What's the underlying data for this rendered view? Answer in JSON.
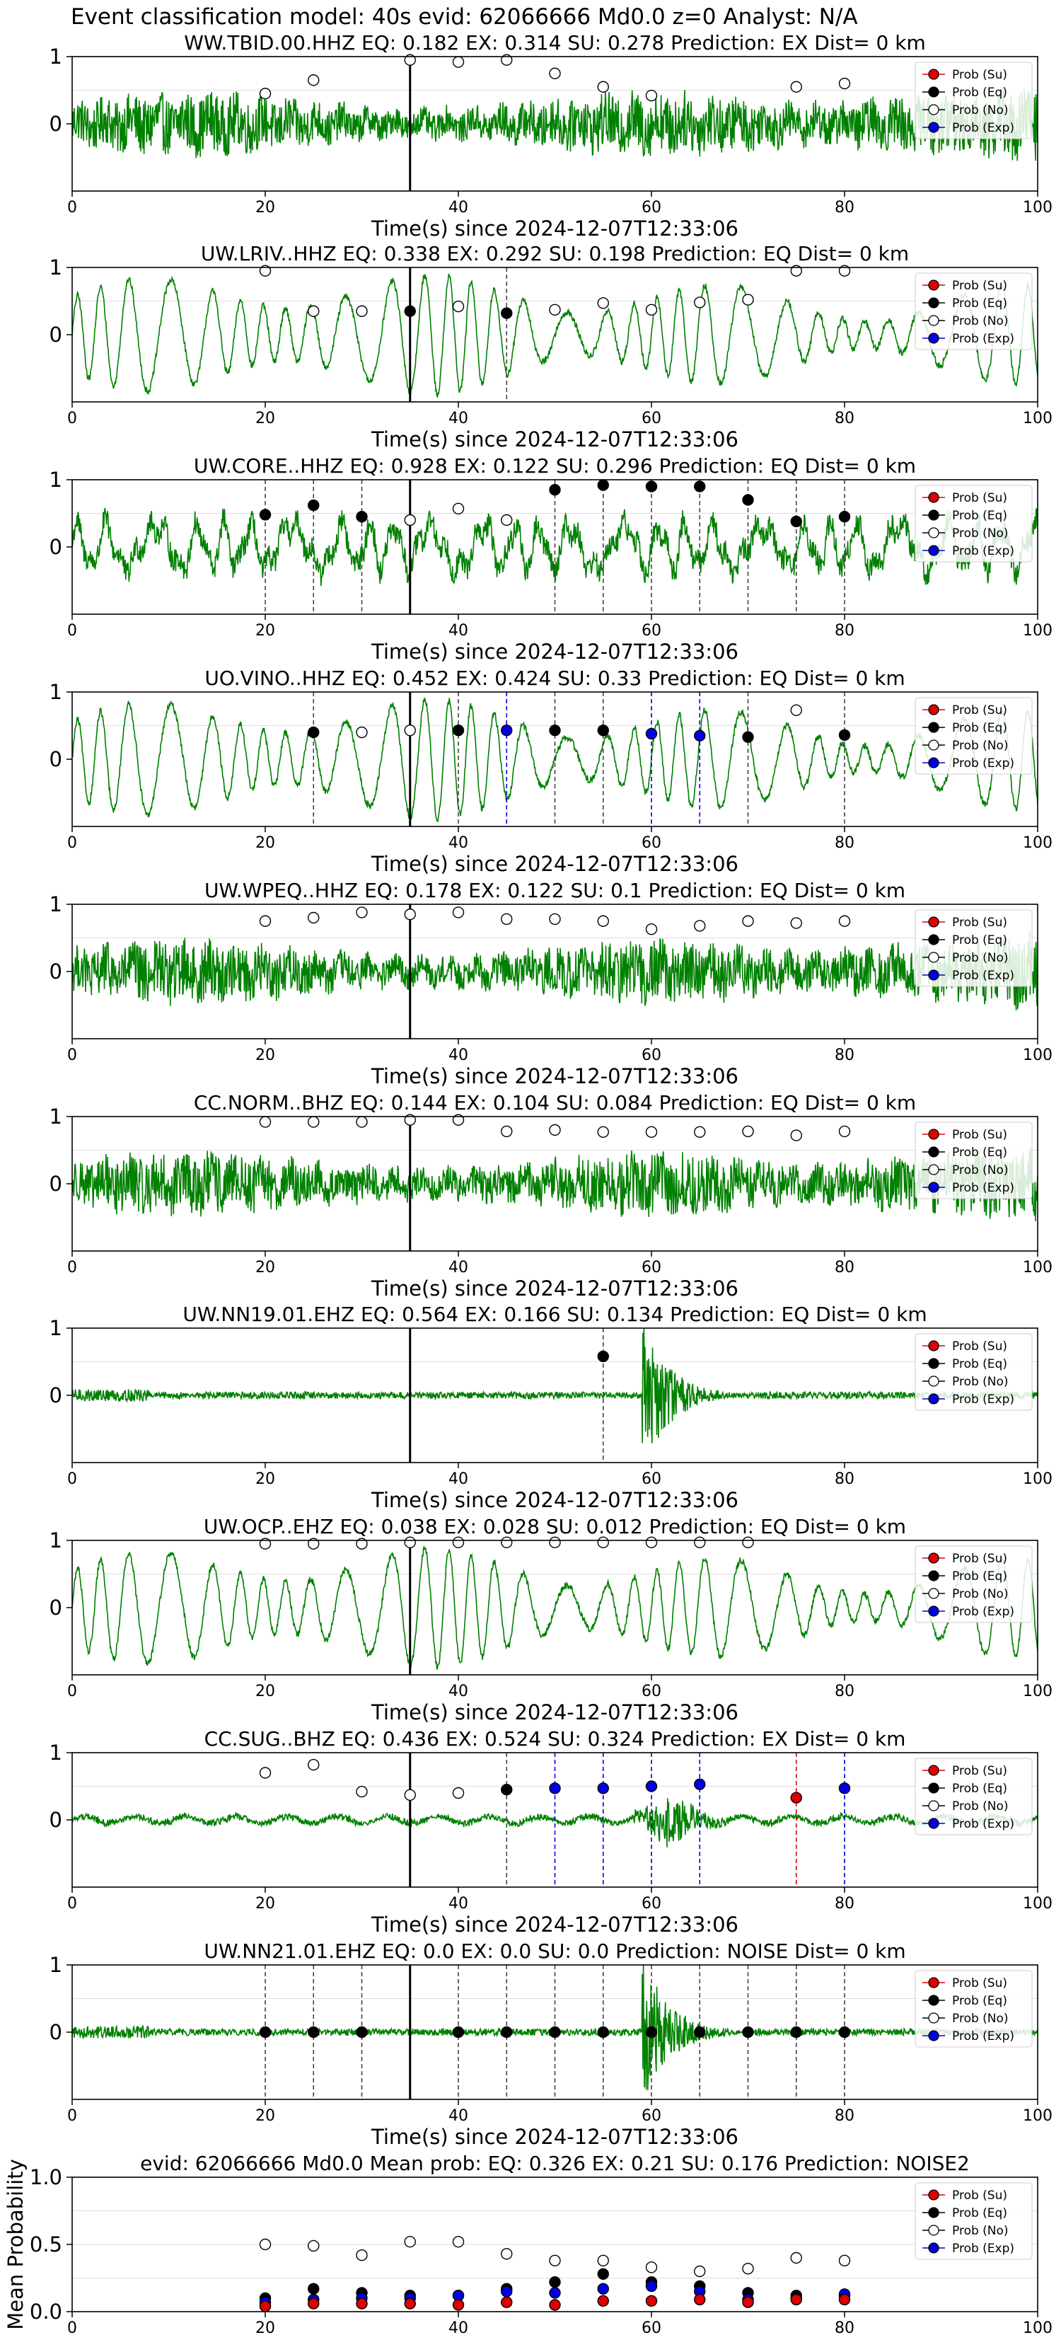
{
  "figure": {
    "suptitle": "Event classification model: 40s evid: 62066666 Md0.0 z=0 Analyst: N/A"
  },
  "legend_labels": [
    "Prob (Su)",
    "Prob (Eq)",
    "Prob (No)",
    "Prob (Exp)"
  ],
  "colors": {
    "waveform": "#008000",
    "su": "#e00000",
    "eq": "#000000",
    "no": "#ffffff",
    "exp": "#0000e0",
    "pick_line": "#000000",
    "grid": "#dddddd"
  },
  "chart_data": [
    {
      "type": "line",
      "title": "WW.TBID.00.HHZ   EQ: 0.182  EX: 0.314  SU: 0.278   Prediction: EX    Dist= 0 km",
      "xlabel": "Time(s) since 2024-12-07T12:33:06",
      "xlim": [
        0,
        100
      ],
      "ylim": [
        -1,
        1
      ],
      "xticks": [
        0,
        20,
        40,
        60,
        80,
        100
      ],
      "yticks": [
        0,
        1
      ],
      "waveform_style": "broadband_noise",
      "pick_time": 35,
      "points": [
        {
          "x": 20,
          "y": 0.45,
          "class": "no"
        },
        {
          "x": 25,
          "y": 0.65,
          "class": "no"
        },
        {
          "x": 35,
          "y": 0.95,
          "class": "no"
        },
        {
          "x": 40,
          "y": 0.92,
          "class": "no"
        },
        {
          "x": 45,
          "y": 0.95,
          "class": "no"
        },
        {
          "x": 50,
          "y": 0.75,
          "class": "no"
        },
        {
          "x": 55,
          "y": 0.55,
          "class": "no"
        },
        {
          "x": 60,
          "y": 0.42,
          "class": "no"
        },
        {
          "x": 75,
          "y": 0.55,
          "class": "no"
        },
        {
          "x": 80,
          "y": 0.6,
          "class": "no"
        }
      ],
      "vlines": []
    },
    {
      "type": "line",
      "title": "UW.LRIV..HHZ   EQ: 0.338  EX: 0.292  SU: 0.198   Prediction: EQ    Dist= 0 km",
      "xlabel": "Time(s) since 2024-12-07T12:33:06",
      "xlim": [
        0,
        100
      ],
      "ylim": [
        -1,
        1
      ],
      "xticks": [
        0,
        20,
        40,
        60,
        80,
        100
      ],
      "yticks": [
        0,
        1
      ],
      "waveform_style": "smooth_oscillation",
      "pick_time": 35,
      "points": [
        {
          "x": 20,
          "y": 0.95,
          "class": "no"
        },
        {
          "x": 25,
          "y": 0.35,
          "class": "no"
        },
        {
          "x": 30,
          "y": 0.35,
          "class": "no"
        },
        {
          "x": 35,
          "y": 0.35,
          "class": "eq"
        },
        {
          "x": 40,
          "y": 0.42,
          "class": "no"
        },
        {
          "x": 45,
          "y": 0.32,
          "class": "eq"
        },
        {
          "x": 50,
          "y": 0.37,
          "class": "no"
        },
        {
          "x": 55,
          "y": 0.47,
          "class": "no"
        },
        {
          "x": 60,
          "y": 0.37,
          "class": "no"
        },
        {
          "x": 65,
          "y": 0.48,
          "class": "no"
        },
        {
          "x": 70,
          "y": 0.52,
          "class": "no"
        },
        {
          "x": 75,
          "y": 0.95,
          "class": "no"
        },
        {
          "x": 80,
          "y": 0.95,
          "class": "no"
        }
      ],
      "vlines": [
        {
          "x": 45,
          "class": "eq"
        }
      ]
    },
    {
      "type": "line",
      "title": "UW.CORE..HHZ   EQ: 0.928  EX: 0.122  SU: 0.296   Prediction: EQ    Dist= 0 km",
      "xlabel": "Time(s) since 2024-12-07T12:33:06",
      "xlim": [
        0,
        100
      ],
      "ylim": [
        -1,
        1
      ],
      "xticks": [
        0,
        20,
        40,
        60,
        80,
        100
      ],
      "yticks": [
        0,
        1
      ],
      "waveform_style": "mixed",
      "pick_time": 35,
      "points": [
        {
          "x": 20,
          "y": 0.48,
          "class": "eq"
        },
        {
          "x": 25,
          "y": 0.62,
          "class": "eq"
        },
        {
          "x": 30,
          "y": 0.45,
          "class": "eq"
        },
        {
          "x": 35,
          "y": 0.4,
          "class": "no"
        },
        {
          "x": 40,
          "y": 0.57,
          "class": "no"
        },
        {
          "x": 45,
          "y": 0.4,
          "class": "no"
        },
        {
          "x": 50,
          "y": 0.85,
          "class": "eq"
        },
        {
          "x": 55,
          "y": 0.92,
          "class": "eq"
        },
        {
          "x": 60,
          "y": 0.9,
          "class": "eq"
        },
        {
          "x": 65,
          "y": 0.9,
          "class": "eq"
        },
        {
          "x": 70,
          "y": 0.7,
          "class": "eq"
        },
        {
          "x": 75,
          "y": 0.38,
          "class": "eq"
        },
        {
          "x": 80,
          "y": 0.45,
          "class": "eq"
        }
      ],
      "vlines": [
        {
          "x": 20,
          "class": "eq"
        },
        {
          "x": 25,
          "class": "eq"
        },
        {
          "x": 30,
          "class": "eq"
        },
        {
          "x": 50,
          "class": "eq"
        },
        {
          "x": 55,
          "class": "eq"
        },
        {
          "x": 60,
          "class": "eq"
        },
        {
          "x": 65,
          "class": "eq"
        },
        {
          "x": 70,
          "class": "eq"
        },
        {
          "x": 75,
          "class": "eq"
        },
        {
          "x": 80,
          "class": "eq"
        }
      ]
    },
    {
      "type": "line",
      "title": "UO.VINO..HHZ   EQ: 0.452  EX: 0.424  SU: 0.33   Prediction: EQ    Dist= 0 km",
      "xlabel": "Time(s) since 2024-12-07T12:33:06",
      "xlim": [
        0,
        100
      ],
      "ylim": [
        -1,
        1
      ],
      "xticks": [
        0,
        20,
        40,
        60,
        80,
        100
      ],
      "yticks": [
        0,
        1
      ],
      "waveform_style": "smooth_oscillation",
      "pick_time": 35,
      "points": [
        {
          "x": 25,
          "y": 0.4,
          "class": "eq"
        },
        {
          "x": 30,
          "y": 0.4,
          "class": "no"
        },
        {
          "x": 35,
          "y": 0.43,
          "class": "no"
        },
        {
          "x": 40,
          "y": 0.43,
          "class": "eq"
        },
        {
          "x": 45,
          "y": 0.43,
          "class": "exp"
        },
        {
          "x": 50,
          "y": 0.43,
          "class": "eq"
        },
        {
          "x": 55,
          "y": 0.43,
          "class": "eq"
        },
        {
          "x": 60,
          "y": 0.38,
          "class": "exp"
        },
        {
          "x": 65,
          "y": 0.35,
          "class": "exp"
        },
        {
          "x": 70,
          "y": 0.33,
          "class": "eq"
        },
        {
          "x": 75,
          "y": 0.73,
          "class": "no"
        },
        {
          "x": 80,
          "y": 0.36,
          "class": "eq"
        }
      ],
      "vlines": [
        {
          "x": 25,
          "class": "eq"
        },
        {
          "x": 40,
          "class": "eq"
        },
        {
          "x": 45,
          "class": "exp"
        },
        {
          "x": 50,
          "class": "eq"
        },
        {
          "x": 55,
          "class": "eq"
        },
        {
          "x": 60,
          "class": "exp"
        },
        {
          "x": 65,
          "class": "exp"
        },
        {
          "x": 70,
          "class": "eq"
        },
        {
          "x": 80,
          "class": "eq"
        }
      ]
    },
    {
      "type": "line",
      "title": "UW.WPEQ..HHZ   EQ: 0.178  EX: 0.122  SU: 0.1   Prediction: EQ    Dist= 0 km",
      "xlabel": "Time(s) since 2024-12-07T12:33:06",
      "xlim": [
        0,
        100
      ],
      "ylim": [
        -1,
        1
      ],
      "xticks": [
        0,
        20,
        40,
        60,
        80,
        100
      ],
      "yticks": [
        0,
        1
      ],
      "waveform_style": "broadband_noise",
      "pick_time": 35,
      "points": [
        {
          "x": 20,
          "y": 0.75,
          "class": "no"
        },
        {
          "x": 25,
          "y": 0.8,
          "class": "no"
        },
        {
          "x": 30,
          "y": 0.88,
          "class": "no"
        },
        {
          "x": 35,
          "y": 0.85,
          "class": "no"
        },
        {
          "x": 40,
          "y": 0.88,
          "class": "no"
        },
        {
          "x": 45,
          "y": 0.78,
          "class": "no"
        },
        {
          "x": 50,
          "y": 0.78,
          "class": "no"
        },
        {
          "x": 55,
          "y": 0.75,
          "class": "no"
        },
        {
          "x": 60,
          "y": 0.63,
          "class": "no"
        },
        {
          "x": 65,
          "y": 0.68,
          "class": "no"
        },
        {
          "x": 70,
          "y": 0.75,
          "class": "no"
        },
        {
          "x": 75,
          "y": 0.72,
          "class": "no"
        },
        {
          "x": 80,
          "y": 0.75,
          "class": "no"
        }
      ],
      "vlines": []
    },
    {
      "type": "line",
      "title": "CC.NORM..BHZ   EQ: 0.144  EX: 0.104  SU: 0.084   Prediction: EQ    Dist= 0 km",
      "xlabel": "Time(s) since 2024-12-07T12:33:06",
      "xlim": [
        0,
        100
      ],
      "ylim": [
        -1,
        1
      ],
      "xticks": [
        0,
        20,
        40,
        60,
        80,
        100
      ],
      "yticks": [
        0,
        1
      ],
      "waveform_style": "broadband_noise",
      "pick_time": 35,
      "points": [
        {
          "x": 20,
          "y": 0.92,
          "class": "no"
        },
        {
          "x": 25,
          "y": 0.92,
          "class": "no"
        },
        {
          "x": 30,
          "y": 0.92,
          "class": "no"
        },
        {
          "x": 35,
          "y": 0.95,
          "class": "no"
        },
        {
          "x": 40,
          "y": 0.95,
          "class": "no"
        },
        {
          "x": 45,
          "y": 0.78,
          "class": "no"
        },
        {
          "x": 50,
          "y": 0.8,
          "class": "no"
        },
        {
          "x": 55,
          "y": 0.77,
          "class": "no"
        },
        {
          "x": 60,
          "y": 0.77,
          "class": "no"
        },
        {
          "x": 65,
          "y": 0.77,
          "class": "no"
        },
        {
          "x": 70,
          "y": 0.78,
          "class": "no"
        },
        {
          "x": 75,
          "y": 0.72,
          "class": "no"
        },
        {
          "x": 80,
          "y": 0.78,
          "class": "no"
        }
      ],
      "vlines": []
    },
    {
      "type": "line",
      "title": "UW.NN19.01.EHZ   EQ: 0.564  EX: 0.166  SU: 0.134   Prediction: EQ    Dist= 0 km",
      "xlabel": "Time(s) since 2024-12-07T12:33:06",
      "xlim": [
        0,
        100
      ],
      "ylim": [
        -1,
        1
      ],
      "xticks": [
        0,
        20,
        40,
        60,
        80,
        100
      ],
      "yticks": [
        0,
        1
      ],
      "waveform_style": "quiet_burst_60",
      "pick_time": 35,
      "points": [
        {
          "x": 55,
          "y": 0.58,
          "class": "eq"
        }
      ],
      "vlines": [
        {
          "x": 55,
          "class": "eq"
        }
      ]
    },
    {
      "type": "line",
      "title": "UW.OCP..EHZ   EQ: 0.038  EX: 0.028  SU: 0.012   Prediction: EQ    Dist= 0 km",
      "xlabel": "Time(s) since 2024-12-07T12:33:06",
      "xlim": [
        0,
        100
      ],
      "ylim": [
        -1,
        1
      ],
      "xticks": [
        0,
        20,
        40,
        60,
        80,
        100
      ],
      "yticks": [
        0,
        1
      ],
      "waveform_style": "smooth_oscillation",
      "pick_time": 35,
      "points": [
        {
          "x": 20,
          "y": 0.95,
          "class": "no"
        },
        {
          "x": 25,
          "y": 0.95,
          "class": "no"
        },
        {
          "x": 30,
          "y": 0.95,
          "class": "no"
        },
        {
          "x": 35,
          "y": 0.97,
          "class": "no"
        },
        {
          "x": 40,
          "y": 0.97,
          "class": "no"
        },
        {
          "x": 45,
          "y": 0.97,
          "class": "no"
        },
        {
          "x": 50,
          "y": 0.97,
          "class": "no"
        },
        {
          "x": 55,
          "y": 0.97,
          "class": "no"
        },
        {
          "x": 60,
          "y": 0.97,
          "class": "no"
        },
        {
          "x": 65,
          "y": 0.97,
          "class": "no"
        },
        {
          "x": 70,
          "y": 0.97,
          "class": "no"
        }
      ],
      "vlines": []
    },
    {
      "type": "line",
      "title": "CC.SUG..BHZ   EQ: 0.436  EX: 0.524  SU: 0.324   Prediction: EX    Dist= 0 km",
      "xlabel": "Time(s) since 2024-12-07T12:33:06",
      "xlim": [
        0,
        100
      ],
      "ylim": [
        -1,
        1
      ],
      "xticks": [
        0,
        20,
        40,
        60,
        80,
        100
      ],
      "yticks": [
        0,
        1
      ],
      "waveform_style": "quiet_burst_63",
      "pick_time": 35,
      "points": [
        {
          "x": 20,
          "y": 0.7,
          "class": "no"
        },
        {
          "x": 25,
          "y": 0.82,
          "class": "no"
        },
        {
          "x": 30,
          "y": 0.42,
          "class": "no"
        },
        {
          "x": 35,
          "y": 0.37,
          "class": "no"
        },
        {
          "x": 40,
          "y": 0.4,
          "class": "no"
        },
        {
          "x": 45,
          "y": 0.45,
          "class": "eq"
        },
        {
          "x": 50,
          "y": 0.47,
          "class": "exp"
        },
        {
          "x": 55,
          "y": 0.47,
          "class": "exp"
        },
        {
          "x": 60,
          "y": 0.5,
          "class": "exp"
        },
        {
          "x": 65,
          "y": 0.53,
          "class": "exp"
        },
        {
          "x": 75,
          "y": 0.33,
          "class": "su"
        },
        {
          "x": 80,
          "y": 0.47,
          "class": "exp"
        }
      ],
      "vlines": [
        {
          "x": 45,
          "class": "eq"
        },
        {
          "x": 50,
          "class": "exp"
        },
        {
          "x": 55,
          "class": "exp"
        },
        {
          "x": 60,
          "class": "exp"
        },
        {
          "x": 65,
          "class": "exp"
        },
        {
          "x": 75,
          "class": "su"
        },
        {
          "x": 80,
          "class": "exp"
        }
      ]
    },
    {
      "type": "line",
      "title": "UW.NN21.01.EHZ   EQ: 0.0  EX: 0.0  SU: 0.0   Prediction: NOISE    Dist= 0 km",
      "xlabel": "Time(s) since 2024-12-07T12:33:06",
      "xlim": [
        0,
        100
      ],
      "ylim": [
        -1,
        1
      ],
      "xticks": [
        0,
        20,
        40,
        60,
        80,
        100
      ],
      "yticks": [
        0,
        1
      ],
      "waveform_style": "quiet_burst_60",
      "pick_time": 35,
      "points": [
        {
          "x": 20,
          "y": 0.0,
          "class": "eq"
        },
        {
          "x": 25,
          "y": 0.0,
          "class": "eq"
        },
        {
          "x": 30,
          "y": 0.0,
          "class": "eq"
        },
        {
          "x": 40,
          "y": 0.0,
          "class": "eq"
        },
        {
          "x": 45,
          "y": 0.0,
          "class": "eq"
        },
        {
          "x": 50,
          "y": 0.0,
          "class": "eq"
        },
        {
          "x": 55,
          "y": 0.0,
          "class": "eq"
        },
        {
          "x": 60,
          "y": 0.0,
          "class": "eq"
        },
        {
          "x": 65,
          "y": 0.0,
          "class": "eq"
        },
        {
          "x": 70,
          "y": 0.0,
          "class": "eq"
        },
        {
          "x": 75,
          "y": 0.0,
          "class": "eq"
        },
        {
          "x": 80,
          "y": 0.0,
          "class": "eq"
        }
      ],
      "vlines": [
        {
          "x": 20,
          "class": "eq"
        },
        {
          "x": 25,
          "class": "eq"
        },
        {
          "x": 30,
          "class": "eq"
        },
        {
          "x": 40,
          "class": "eq"
        },
        {
          "x": 45,
          "class": "eq"
        },
        {
          "x": 50,
          "class": "eq"
        },
        {
          "x": 55,
          "class": "eq"
        },
        {
          "x": 60,
          "class": "eq"
        },
        {
          "x": 65,
          "class": "eq"
        },
        {
          "x": 70,
          "class": "eq"
        },
        {
          "x": 75,
          "class": "eq"
        },
        {
          "x": 80,
          "class": "eq"
        }
      ]
    },
    {
      "type": "scatter",
      "title": "evid: 62066666  Md0.0   Mean prob:   EQ: 0.326  EX: 0.21  SU: 0.176   Prediction: NOISE2",
      "xlabel": "",
      "ylabel": "Mean Probability",
      "xlim": [
        0,
        100
      ],
      "ylim": [
        0,
        1
      ],
      "xticks": [
        0,
        20,
        40,
        60,
        80,
        100
      ],
      "yticks": [
        0.0,
        0.5,
        1.0
      ],
      "x": [
        20,
        25,
        30,
        35,
        40,
        45,
        50,
        55,
        60,
        65,
        70,
        75,
        80
      ],
      "series": [
        {
          "name": "Prob (No)",
          "class": "no",
          "values": [
            0.5,
            0.49,
            0.42,
            0.52,
            0.52,
            0.43,
            0.38,
            0.38,
            0.33,
            0.3,
            0.32,
            0.4,
            0.38
          ]
        },
        {
          "name": "Prob (Eq)",
          "class": "eq",
          "values": [
            0.1,
            0.17,
            0.14,
            0.12,
            0.12,
            0.17,
            0.22,
            0.28,
            0.22,
            0.19,
            0.14,
            0.12,
            0.12
          ]
        },
        {
          "name": "Prob (Exp)",
          "class": "exp",
          "values": [
            0.07,
            0.09,
            0.1,
            0.1,
            0.12,
            0.15,
            0.14,
            0.17,
            0.19,
            0.15,
            0.09,
            0.1,
            0.13
          ]
        },
        {
          "name": "Prob (Su)",
          "class": "su",
          "values": [
            0.04,
            0.06,
            0.06,
            0.06,
            0.05,
            0.07,
            0.05,
            0.08,
            0.08,
            0.09,
            0.07,
            0.09,
            0.09
          ]
        }
      ]
    }
  ]
}
